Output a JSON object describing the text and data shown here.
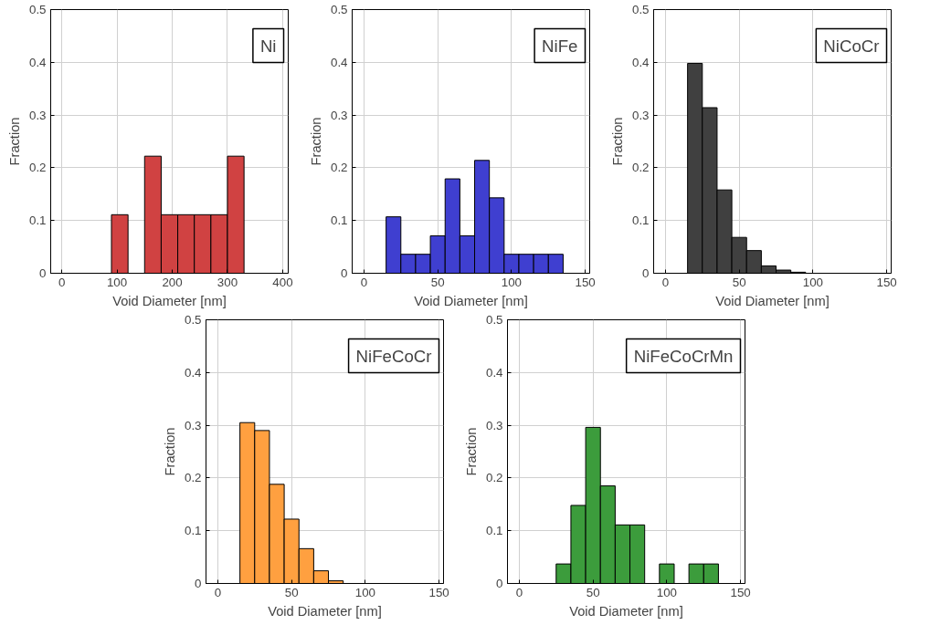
{
  "chart_data": [
    {
      "type": "histogram",
      "xlabel": "Void Diameter [nm]",
      "ylabel": "Fraction",
      "annotations": [
        "Ni"
      ],
      "color": "#d04242",
      "grid": true,
      "bins": [
        0,
        30,
        60,
        90,
        120,
        150,
        180,
        210,
        240,
        270,
        300,
        330
      ],
      "values": [
        0,
        0,
        0,
        0.111,
        0,
        0.222,
        0.111,
        0.111,
        0.111,
        0.111,
        0.222
      ],
      "xlim": [
        -20,
        410
      ],
      "ylim": [
        0,
        0.5
      ],
      "xticks": [
        0,
        100,
        200,
        300,
        400
      ],
      "yticks": [
        0,
        0.1,
        0.2,
        0.3,
        0.4,
        0.5
      ]
    },
    {
      "type": "histogram",
      "xlabel": "Void Diameter [nm]",
      "ylabel": "Fraction",
      "annotations": [
        "NiFe"
      ],
      "color": "#3f3fd0",
      "grid": true,
      "bins": [
        5,
        15,
        25,
        35,
        45,
        55,
        65,
        75,
        85,
        95,
        105,
        115,
        125,
        135
      ],
      "values": [
        0,
        0.107,
        0.036,
        0.036,
        0.071,
        0.179,
        0.071,
        0.214,
        0.143,
        0.036,
        0.036,
        0.036,
        0.036
      ],
      "xlim": [
        -8,
        153
      ],
      "ylim": [
        0,
        0.5
      ],
      "xticks": [
        0,
        50,
        100,
        150
      ],
      "yticks": [
        0,
        0.1,
        0.2,
        0.3,
        0.4,
        0.5
      ]
    },
    {
      "type": "histogram",
      "xlabel": "Void Diameter [nm]",
      "ylabel": "Fraction",
      "annotations": [
        "NiCoCr"
      ],
      "color": "#404040",
      "grid": true,
      "bins": [
        5,
        15,
        25,
        35,
        45,
        55,
        65,
        75,
        85,
        95,
        105,
        115,
        125,
        135,
        145
      ],
      "values": [
        0,
        0.398,
        0.314,
        0.158,
        0.068,
        0.043,
        0.014,
        0.006,
        0.002,
        0,
        0,
        0,
        0,
        0
      ],
      "xlim": [
        -8,
        153
      ],
      "ylim": [
        0,
        0.5
      ],
      "xticks": [
        0,
        50,
        100,
        150
      ],
      "yticks": [
        0,
        0.1,
        0.2,
        0.3,
        0.4,
        0.5
      ]
    },
    {
      "type": "histogram",
      "xlabel": "Void Diameter [nm]",
      "ylabel": "Fraction",
      "annotations": [
        "NiFeCoCr"
      ],
      "color": "#ffa040",
      "grid": true,
      "bins": [
        5,
        15,
        25,
        35,
        45,
        55,
        65,
        75,
        85,
        95,
        105,
        115,
        125,
        135,
        145
      ],
      "values": [
        0,
        0.305,
        0.29,
        0.188,
        0.122,
        0.066,
        0.024,
        0.005,
        0,
        0,
        0,
        0,
        0,
        0
      ],
      "xlim": [
        -8,
        153
      ],
      "ylim": [
        0,
        0.5
      ],
      "xticks": [
        0,
        50,
        100,
        150
      ],
      "yticks": [
        0,
        0.1,
        0.2,
        0.3,
        0.4,
        0.5
      ]
    },
    {
      "type": "histogram",
      "xlabel": "Void Diameter [nm]",
      "ylabel": "Fraction",
      "annotations": [
        "NiFeCoCrMn"
      ],
      "color": "#3c9c3c",
      "grid": true,
      "bins": [
        5,
        15,
        25,
        35,
        45,
        55,
        65,
        75,
        85,
        95,
        105,
        115,
        125,
        135,
        145
      ],
      "values": [
        0,
        0,
        0.037,
        0.148,
        0.296,
        0.185,
        0.111,
        0.111,
        0,
        0.037,
        0,
        0.037,
        0.037,
        0
      ],
      "xlim": [
        -8,
        153
      ],
      "ylim": [
        0,
        0.5
      ],
      "xticks": [
        0,
        50,
        100,
        150
      ],
      "yticks": [
        0,
        0.1,
        0.2,
        0.3,
        0.4,
        0.5
      ]
    }
  ]
}
